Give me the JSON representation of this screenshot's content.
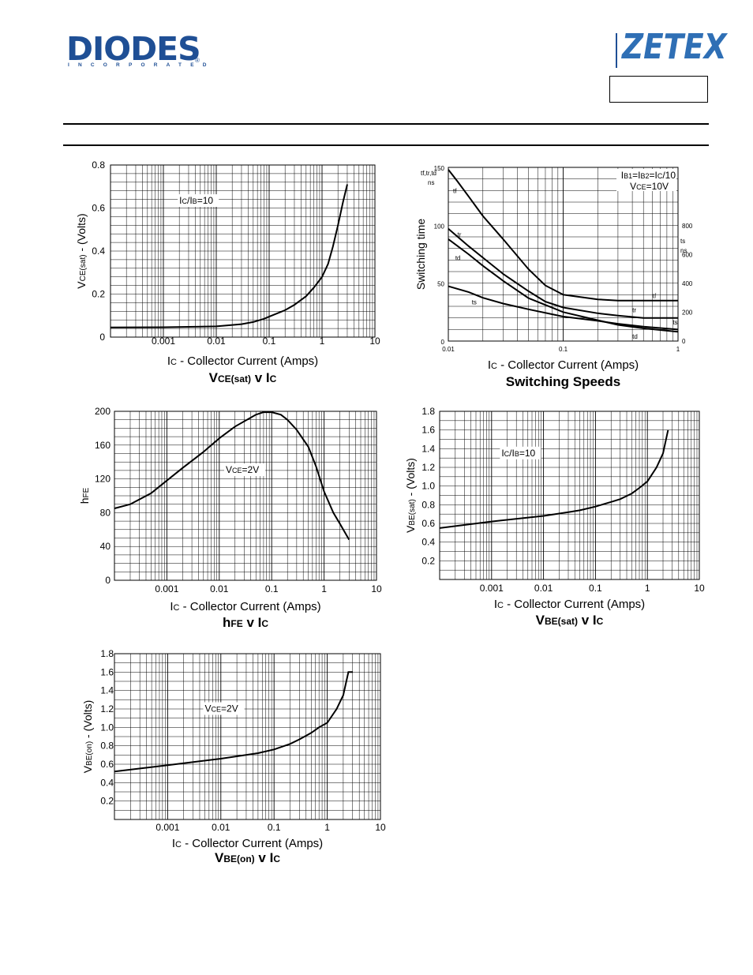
{
  "header": {
    "brand_left": "DIODES",
    "brand_left_sub": "INCORPORATED",
    "brand_left_reg": "®",
    "brand_right": "ZETEX",
    "part_number": ""
  },
  "colors": {
    "diodes_blue": "#1f4f95",
    "zetex_blue": "#2f6fb5",
    "grid": "#000000"
  },
  "chart_data": [
    {
      "id": "vcesat",
      "type": "line",
      "title": "VCE(sat) v IC",
      "title_parts": [
        {
          "t": "V",
          "big": true
        },
        {
          "t": "CE(sat)",
          "big": false
        },
        {
          "t": " v I",
          "big": true
        },
        {
          "t": "C",
          "big": false
        }
      ],
      "xlabel": "IC - Collector Current (Amps)",
      "xlabel_parts": [
        {
          "t": "I",
          "big": true
        },
        {
          "t": "C",
          "big": false
        },
        {
          "t": " - Collector Current (Amps)",
          "big": true
        }
      ],
      "ylabel": "VCE(sat) - (Volts)",
      "ylabel_parts": [
        {
          "t": "V",
          "big": true
        },
        {
          "t": "CE(sat)",
          "big": false
        },
        {
          "t": " - (Volts)",
          "big": true
        }
      ],
      "x_scale": "log",
      "xlim": [
        0.0001,
        10
      ],
      "ylim": [
        0,
        0.8
      ],
      "x_ticks": [
        {
          "v": 0.001,
          "label": "0.001"
        },
        {
          "v": 0.01,
          "label": "0.01"
        },
        {
          "v": 0.1,
          "label": "0.1"
        },
        {
          "v": 1,
          "label": "1"
        },
        {
          "v": 10,
          "label": "10"
        }
      ],
      "y_ticks": [
        {
          "v": 0,
          "label": "0"
        },
        {
          "v": 0.2,
          "label": "0.2"
        },
        {
          "v": 0.4,
          "label": "0.4"
        },
        {
          "v": 0.6,
          "label": "0.6"
        },
        {
          "v": 0.8,
          "label": "0.8"
        }
      ],
      "y_grid_step": 0.04,
      "annotations": [
        {
          "text": "IC/IB=10",
          "parts": [
            {
              "t": "I",
              "big": true
            },
            {
              "t": "C",
              "big": false
            },
            {
              "t": "/I",
              "big": true
            },
            {
              "t": "B",
              "big": false
            },
            {
              "t": "=10",
              "big": true
            }
          ],
          "x": 0.002,
          "y": 0.62
        }
      ],
      "series": [
        {
          "x": [
            0.0001,
            0.001,
            0.01,
            0.03,
            0.05,
            0.08,
            0.1,
            0.2,
            0.3,
            0.5,
            0.7,
            1,
            1.3,
            1.6,
            2,
            2.5,
            3
          ],
          "y": [
            0.045,
            0.046,
            0.05,
            0.06,
            0.07,
            0.085,
            0.095,
            0.125,
            0.15,
            0.19,
            0.23,
            0.28,
            0.34,
            0.42,
            0.52,
            0.63,
            0.71
          ]
        }
      ]
    },
    {
      "id": "switching",
      "type": "line",
      "title": "Switching Speeds",
      "title_parts": [
        {
          "t": "Switching Speeds",
          "big": true
        }
      ],
      "xlabel": "IC - Collector Current (Amps)",
      "xlabel_parts": [
        {
          "t": "I",
          "big": true
        },
        {
          "t": "C",
          "big": false
        },
        {
          "t": " - Collector Current (Amps)",
          "big": true
        }
      ],
      "ylabel": "Switching time",
      "ylabel_parts": [
        {
          "t": "Switching time",
          "big": true
        }
      ],
      "x_scale": "log",
      "xlim": [
        0.01,
        1
      ],
      "ylim": [
        0,
        150
      ],
      "x_ticks": [
        {
          "v": 0.01,
          "label": "0.01"
        },
        {
          "v": 0.1,
          "label": "0.1"
        },
        {
          "v": 1,
          "label": "1"
        }
      ],
      "y_ticks": [
        {
          "v": 0,
          "label": "0"
        },
        {
          "v": 50,
          "label": "50"
        },
        {
          "v": 100,
          "label": "100"
        },
        {
          "v": 150,
          "label": "150"
        }
      ],
      "y2_ticks": [
        {
          "v": 0,
          "label": "0"
        },
        {
          "v": 200,
          "label": "200"
        },
        {
          "v": 400,
          "label": "400"
        },
        {
          "v": 600,
          "label": "600"
        },
        {
          "v": 800,
          "label": "800"
        }
      ],
      "y2lim": [
        0,
        1000
      ],
      "y_unit_top": [
        "tf,tr,td",
        "ns"
      ],
      "y2_unit_top": [
        "ts",
        "ns"
      ],
      "legend_top_right": [
        "IB1=IB2=IC/10",
        "VCE=10V"
      ],
      "legend_parts": [
        [
          {
            "t": "I",
            "big": true
          },
          {
            "t": "B1",
            "big": false
          },
          {
            "t": "=I",
            "big": true
          },
          {
            "t": "B2",
            "big": false
          },
          {
            "t": "=I",
            "big": true
          },
          {
            "t": "C",
            "big": false
          },
          {
            "t": "/10",
            "big": true
          }
        ],
        [
          {
            "t": "V",
            "big": true
          },
          {
            "t": "CE",
            "big": false
          },
          {
            "t": "=10V",
            "big": true
          }
        ]
      ],
      "series": [
        {
          "name": "tf",
          "axis": "left",
          "label_at": [
            0.011,
            128
          ],
          "end_label_at": [
            0.6,
            37
          ],
          "x": [
            0.01,
            0.012,
            0.015,
            0.02,
            0.03,
            0.05,
            0.07,
            0.1,
            0.2,
            0.3,
            0.5,
            1
          ],
          "y": [
            148,
            138,
            125,
            108,
            88,
            62,
            48,
            40,
            36,
            35,
            35,
            35
          ]
        },
        {
          "name": "tr",
          "axis": "left",
          "label_at": [
            0.012,
            90
          ],
          "end_label_at": [
            0.4,
            25
          ],
          "x": [
            0.01,
            0.015,
            0.02,
            0.03,
            0.05,
            0.07,
            0.1,
            0.2,
            0.3,
            0.5,
            1
          ],
          "y": [
            97,
            82,
            72,
            58,
            43,
            34,
            29,
            24,
            22,
            20,
            20
          ]
        },
        {
          "name": "td",
          "axis": "left",
          "label_at": [
            0.0115,
            70
          ],
          "end_label_at": [
            0.4,
            2
          ],
          "x": [
            0.01,
            0.015,
            0.02,
            0.03,
            0.05,
            0.1,
            0.2,
            0.3,
            0.5,
            1
          ],
          "y": [
            88,
            75,
            65,
            52,
            37,
            25,
            18,
            14,
            11,
            8
          ]
        },
        {
          "name": "ts",
          "axis": "right",
          "label_at": [
            0.016,
            255
          ],
          "end_label_at": [
            0.9,
            115
          ],
          "x": [
            0.01,
            0.015,
            0.02,
            0.03,
            0.05,
            0.1,
            0.2,
            0.3,
            0.5,
            1
          ],
          "y": [
            380,
            340,
            300,
            260,
            220,
            170,
            140,
            120,
            100,
            80
          ]
        }
      ]
    },
    {
      "id": "hfe",
      "type": "line",
      "title": "hFE v IC",
      "title_parts": [
        {
          "t": "h",
          "big": true
        },
        {
          "t": "FE",
          "big": false
        },
        {
          "t": " v I",
          "big": true
        },
        {
          "t": "C",
          "big": false
        }
      ],
      "xlabel": "IC - Collector Current (Amps)",
      "xlabel_parts": [
        {
          "t": "I",
          "big": true
        },
        {
          "t": "C",
          "big": false
        },
        {
          "t": " - Collector Current (Amps)",
          "big": true
        }
      ],
      "ylabel": "hFE",
      "ylabel_parts": [
        {
          "t": "h",
          "big": true
        },
        {
          "t": "FE",
          "big": false
        }
      ],
      "x_scale": "log",
      "xlim": [
        0.0001,
        10
      ],
      "ylim": [
        0,
        200
      ],
      "x_ticks": [
        {
          "v": 0.001,
          "label": "0.001"
        },
        {
          "v": 0.01,
          "label": "0.01"
        },
        {
          "v": 0.1,
          "label": "0.1"
        },
        {
          "v": 1,
          "label": "1"
        },
        {
          "v": 10,
          "label": "10"
        }
      ],
      "y_ticks": [
        {
          "v": 0,
          "label": "0"
        },
        {
          "v": 40,
          "label": "40"
        },
        {
          "v": 80,
          "label": "80"
        },
        {
          "v": 120,
          "label": "120"
        },
        {
          "v": 160,
          "label": "160"
        },
        {
          "v": 200,
          "label": "200"
        }
      ],
      "y_grid_step": 10,
      "annotations": [
        {
          "text": "VCE=2V",
          "parts": [
            {
              "t": "V",
              "big": true
            },
            {
              "t": "CE",
              "big": false
            },
            {
              "t": "=2V",
              "big": true
            }
          ],
          "x": 0.0133,
          "y": 127
        }
      ],
      "series": [
        {
          "x": [
            0.0001,
            0.0002,
            0.0005,
            0.001,
            0.002,
            0.005,
            0.01,
            0.02,
            0.05,
            0.07,
            0.1,
            0.15,
            0.2,
            0.3,
            0.5,
            0.7,
            1,
            1.5,
            2,
            3
          ],
          "y": [
            85,
            90,
            103,
            118,
            133,
            152,
            168,
            182,
            196,
            199,
            199,
            196,
            190,
            178,
            158,
            135,
            105,
            80,
            67,
            48
          ]
        }
      ]
    },
    {
      "id": "vbesat",
      "type": "line",
      "title": "VBE(sat) v IC",
      "title_parts": [
        {
          "t": "V",
          "big": true
        },
        {
          "t": "BE(sat)",
          "big": false
        },
        {
          "t": " v I",
          "big": true
        },
        {
          "t": "C",
          "big": false
        }
      ],
      "xlabel": "IC - Collector Current (Amps)",
      "xlabel_parts": [
        {
          "t": "I",
          "big": true
        },
        {
          "t": "C",
          "big": false
        },
        {
          "t": " - Collector Current (Amps)",
          "big": true
        }
      ],
      "ylabel": "VBE(sat) - (Volts)",
      "ylabel_parts": [
        {
          "t": "V",
          "big": true
        },
        {
          "t": "BE(sat)",
          "big": false
        },
        {
          "t": " - (Volts)",
          "big": true
        }
      ],
      "x_scale": "log",
      "xlim": [
        0.0001,
        10
      ],
      "ylim": [
        0,
        1.8
      ],
      "x_ticks": [
        {
          "v": 0.001,
          "label": "0.001"
        },
        {
          "v": 0.01,
          "label": "0.01"
        },
        {
          "v": 0.1,
          "label": "0.1"
        },
        {
          "v": 1,
          "label": "1"
        },
        {
          "v": 10,
          "label": "10"
        }
      ],
      "y_ticks": [
        {
          "v": 0.2,
          "label": "0.2"
        },
        {
          "v": 0.4,
          "label": "0.4"
        },
        {
          "v": 0.6,
          "label": "0.6"
        },
        {
          "v": 0.8,
          "label": "0.8"
        },
        {
          "v": 1.0,
          "label": "1.0"
        },
        {
          "v": 1.2,
          "label": "1.2"
        },
        {
          "v": 1.4,
          "label": "1.4"
        },
        {
          "v": 1.6,
          "label": "1.6"
        },
        {
          "v": 1.8,
          "label": "1.8"
        }
      ],
      "y_grid_step": 0.1,
      "annotations": [
        {
          "text": "IC/IB=10",
          "parts": [
            {
              "t": "I",
              "big": true
            },
            {
              "t": "C",
              "big": false
            },
            {
              "t": "/I",
              "big": true
            },
            {
              "t": "B",
              "big": false
            },
            {
              "t": "=10",
              "big": true
            }
          ],
          "x": 0.00155,
          "y": 1.32
        }
      ],
      "series": [
        {
          "x": [
            0.0001,
            0.001,
            0.01,
            0.03,
            0.05,
            0.1,
            0.2,
            0.3,
            0.5,
            0.7,
            1,
            1.5,
            2,
            2.5
          ],
          "y": [
            0.55,
            0.62,
            0.68,
            0.72,
            0.74,
            0.78,
            0.83,
            0.86,
            0.92,
            0.98,
            1.05,
            1.2,
            1.35,
            1.6
          ]
        }
      ]
    },
    {
      "id": "vbeon",
      "type": "line",
      "title": "VBE(on) v IC",
      "title_parts": [
        {
          "t": "V",
          "big": true
        },
        {
          "t": "BE(on)",
          "big": false
        },
        {
          "t": " v I",
          "big": true
        },
        {
          "t": "C",
          "big": false
        }
      ],
      "xlabel": "IC - Collector Current (Amps)",
      "xlabel_parts": [
        {
          "t": "I",
          "big": true
        },
        {
          "t": "C",
          "big": false
        },
        {
          "t": " - Collector Current (Amps)",
          "big": true
        }
      ],
      "ylabel": "VBE(on) - (Volts)",
      "ylabel_parts": [
        {
          "t": "V",
          "big": true
        },
        {
          "t": "BE(on)",
          "big": false
        },
        {
          "t": " - (Volts)",
          "big": true
        }
      ],
      "x_scale": "log",
      "xlim": [
        0.0001,
        10
      ],
      "ylim": [
        0,
        1.8
      ],
      "x_ticks": [
        {
          "v": 0.001,
          "label": "0.001"
        },
        {
          "v": 0.01,
          "label": "0.01"
        },
        {
          "v": 0.1,
          "label": "0.1"
        },
        {
          "v": 1,
          "label": "1"
        },
        {
          "v": 10,
          "label": "10"
        }
      ],
      "y_ticks": [
        {
          "v": 0.2,
          "label": "0.2"
        },
        {
          "v": 0.4,
          "label": "0.4"
        },
        {
          "v": 0.6,
          "label": "0.6"
        },
        {
          "v": 0.8,
          "label": "0.8"
        },
        {
          "v": 1.0,
          "label": "1.0"
        },
        {
          "v": 1.2,
          "label": "1.2"
        },
        {
          "v": 1.4,
          "label": "1.4"
        },
        {
          "v": 1.6,
          "label": "1.6"
        },
        {
          "v": 1.8,
          "label": "1.8"
        }
      ],
      "y_grid_step": 0.1,
      "annotations": [
        {
          "text": "VCE=2V",
          "parts": [
            {
              "t": "V",
              "big": true
            },
            {
              "t": "CE",
              "big": false
            },
            {
              "t": "=2V",
              "big": true
            }
          ],
          "x": 0.005,
          "y": 1.17
        }
      ],
      "series": [
        {
          "x": [
            0.0001,
            0.001,
            0.01,
            0.05,
            0.1,
            0.2,
            0.3,
            0.5,
            0.7,
            1,
            1.5,
            2,
            2.5,
            3
          ],
          "y": [
            0.52,
            0.59,
            0.66,
            0.72,
            0.76,
            0.82,
            0.87,
            0.94,
            1.0,
            1.05,
            1.2,
            1.35,
            1.6,
            1.6
          ]
        }
      ]
    }
  ]
}
